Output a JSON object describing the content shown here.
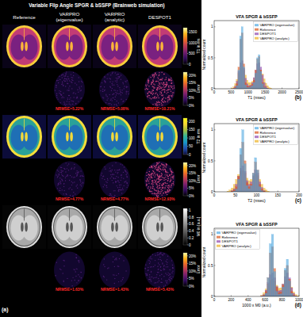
{
  "title": "Variable Flip Angle SPGR & bSSFP (Brainweb simulation)",
  "panel_label": "(a)",
  "columns": [
    [
      "Reference"
    ],
    [
      "VARPRO",
      "(eigenvalue)"
    ],
    [
      "VARPRO",
      "(analytic)"
    ],
    [
      "DESPOT1"
    ]
  ],
  "rows": [
    {
      "colorbar": {
        "label": "T1 in ms",
        "range": [
          0,
          1700
        ],
        "ticks": [
          0,
          500,
          1000,
          1500
        ]
      },
      "error_colorbar": {
        "label": "Error",
        "range": [
          0,
          22
        ],
        "ticks": [
          {
            "value": 0,
            "label": "0%"
          },
          {
            "value": 5,
            "label": "5%"
          },
          {
            "value": 10,
            "label": "10%"
          },
          {
            "value": 15,
            "label": "15%"
          },
          {
            "value": 20,
            "label": "20%"
          }
        ]
      },
      "nrmse": [
        {
          "value": 5.22,
          "label": "NRMSE=5.22%"
        },
        {
          "value": 5.08,
          "label": "NRMSE=5.08%"
        },
        {
          "value": 10.21,
          "label": "NRMSE=10.21%"
        }
      ]
    },
    {
      "colorbar": {
        "label": "T2 in ms",
        "range": [
          0,
          220
        ],
        "ticks": [
          0,
          50,
          100,
          150,
          200
        ]
      },
      "error_colorbar": {
        "label": "Error",
        "range": [
          0,
          22
        ],
        "ticks": [
          {
            "value": 0,
            "label": "0%"
          },
          {
            "value": 5,
            "label": "5%"
          },
          {
            "value": 10,
            "label": "10%"
          },
          {
            "value": 15,
            "label": "15%"
          },
          {
            "value": 20,
            "label": "20%"
          }
        ]
      },
      "nrmse": [
        {
          "value": 4.77,
          "label": "NRMSE=4.77%"
        },
        {
          "value": 4.77,
          "label": "NRMSE=4.77%"
        },
        {
          "value": 12.93,
          "label": "NRMSE=12.93%"
        }
      ]
    },
    {
      "colorbar": {
        "label": "M0 in [a.u.]",
        "range": [
          0,
          1.05
        ],
        "ticks": [
          0,
          0.2,
          0.4,
          0.6,
          0.8,
          1
        ]
      },
      "error_colorbar": {
        "label": "Error",
        "range": [
          0,
          22
        ],
        "ticks": [
          {
            "value": 0,
            "label": "0%"
          },
          {
            "value": 5,
            "label": "5%"
          },
          {
            "value": 10,
            "label": "10%"
          },
          {
            "value": 15,
            "label": "15%"
          },
          {
            "value": 20,
            "label": "20%"
          }
        ]
      },
      "nrmse": [
        {
          "value": 1.63,
          "label": "NRMSE=1.63%"
        },
        {
          "value": 1.43,
          "label": "NRMSE=1.43%"
        },
        {
          "value": 5.43,
          "label": "NRMSE=5.43%"
        }
      ]
    }
  ],
  "chart_data": [
    {
      "type": "histogram",
      "title": "VFA SPGR & bSSFP",
      "panel_label": "(b)",
      "xlabel": "T1 (msec)",
      "ylabel": "Normalized count",
      "xlim": [
        0,
        2500
      ],
      "xticks": [
        0,
        500,
        1000,
        1500,
        2000,
        2500
      ],
      "ylim": [
        0,
        1.1
      ],
      "yticks": [
        0,
        0.5,
        1
      ],
      "grid": false,
      "legend": "upper right",
      "bins": [
        500,
        550,
        600,
        650,
        700,
        750,
        800,
        850,
        900,
        950,
        1000,
        1050,
        1100,
        1150,
        1200,
        1250,
        1300,
        1350,
        1400,
        1450,
        1500,
        1550,
        1600,
        1650,
        1700
      ],
      "series": [
        {
          "name": "VARPRO (analytic)",
          "color": "#edb120",
          "values": [
            0.01,
            0.03,
            0.08,
            0.15,
            0.25,
            0.33,
            0.35,
            0.3,
            0.22,
            0.14,
            0.1,
            0.1,
            0.12,
            0.17,
            0.24,
            0.3,
            0.32,
            0.3,
            0.24,
            0.16,
            0.09,
            0.05,
            0.02,
            0.01
          ]
        },
        {
          "name": "DESPOT1",
          "color": "#8e44ad",
          "values": [
            0,
            0.01,
            0.04,
            0.12,
            0.28,
            0.42,
            0.45,
            0.33,
            0.17,
            0.08,
            0.05,
            0.06,
            0.1,
            0.18,
            0.3,
            0.4,
            0.42,
            0.35,
            0.22,
            0.1,
            0.04,
            0.01,
            0,
            0
          ]
        },
        {
          "name": "Reference",
          "color": "#d9541a",
          "values": [
            0,
            0,
            0.02,
            0.08,
            0.35,
            0.8,
            0.9,
            0.4,
            0.1,
            0.04,
            0.03,
            0.04,
            0.07,
            0.14,
            0.3,
            0.48,
            0.52,
            0.3,
            0.1,
            0.03,
            0.01,
            0,
            0,
            0
          ]
        },
        {
          "name": "VARPRO (eigenvalue)",
          "color": "#4da6e0",
          "values": [
            0,
            0,
            0.01,
            0.05,
            0.3,
            0.85,
            1.0,
            0.35,
            0.06,
            0.02,
            0.02,
            0.03,
            0.05,
            0.1,
            0.25,
            0.5,
            0.55,
            0.28,
            0.08,
            0.02,
            0.01,
            0,
            0,
            0
          ]
        }
      ]
    },
    {
      "type": "histogram",
      "title": "VFA SPGR & bSSFP",
      "panel_label": "(c)",
      "xlabel": "T2 (msec)",
      "ylabel": "Normalized count",
      "xlim": [
        0,
        200
      ],
      "xticks": [
        0,
        50,
        100,
        150,
        200
      ],
      "ylim": [
        0,
        1.1
      ],
      "yticks": [
        0,
        0.5,
        1
      ],
      "grid": false,
      "legend": "upper right",
      "bins": [
        30,
        35,
        40,
        45,
        50,
        55,
        60,
        65,
        70,
        75,
        80,
        85,
        90,
        95,
        100,
        105,
        110,
        115,
        120,
        125,
        130
      ],
      "series": [
        {
          "name": "VARPRO (analytic)",
          "color": "#edb120",
          "values": [
            0.01,
            0.03,
            0.06,
            0.12,
            0.2,
            0.28,
            0.33,
            0.34,
            0.3,
            0.22,
            0.18,
            0.2,
            0.25,
            0.28,
            0.26,
            0.2,
            0.12,
            0.06,
            0.03,
            0.01
          ]
        },
        {
          "name": "DESPOT1",
          "color": "#8e44ad",
          "values": [
            0,
            0,
            0.02,
            0.05,
            0.12,
            0.25,
            0.38,
            0.42,
            0.33,
            0.18,
            0.12,
            0.16,
            0.26,
            0.35,
            0.3,
            0.16,
            0.07,
            0.02,
            0,
            0
          ]
        },
        {
          "name": "Reference",
          "color": "#d9541a",
          "values": [
            0,
            0,
            0.01,
            0.03,
            0.08,
            0.25,
            0.6,
            0.8,
            0.5,
            0.15,
            0.08,
            0.12,
            0.3,
            0.48,
            0.35,
            0.12,
            0.04,
            0.01,
            0,
            0
          ]
        },
        {
          "name": "VARPRO (eigenvalue)",
          "color": "#4da6e0",
          "values": [
            0,
            0,
            0,
            0.01,
            0.04,
            0.2,
            0.7,
            1.0,
            0.45,
            0.1,
            0.05,
            0.1,
            0.3,
            0.55,
            0.35,
            0.08,
            0.02,
            0,
            0,
            0
          ]
        }
      ]
    },
    {
      "type": "histogram",
      "title": "VFA SPGR & bSSFP",
      "panel_label": "(d)",
      "xlabel": "1000 x M0 (a.u.)",
      "ylabel": "Normalized count",
      "xlim": [
        0,
        1000
      ],
      "xticks": [
        0,
        200,
        400,
        600,
        800,
        1000
      ],
      "ylim": [
        0,
        1.1
      ],
      "yticks": [
        0,
        0.5,
        1
      ],
      "grid": false,
      "legend": "upper left",
      "bins": [
        550,
        575,
        600,
        625,
        650,
        675,
        700,
        725,
        750,
        775,
        800,
        825,
        850,
        875,
        900,
        925,
        950,
        975,
        1000
      ],
      "series": [
        {
          "name": "VARPRO (analytic)",
          "color": "#edb120",
          "values": [
            0.02,
            0.06,
            0.12,
            0.2,
            0.26,
            0.28,
            0.25,
            0.18,
            0.13,
            0.14,
            0.2,
            0.26,
            0.28,
            0.24,
            0.15,
            0.07,
            0.03,
            0.01
          ]
        },
        {
          "name": "DESPOT1",
          "color": "#8e44ad",
          "values": [
            0.01,
            0.03,
            0.1,
            0.22,
            0.35,
            0.38,
            0.3,
            0.16,
            0.09,
            0.1,
            0.2,
            0.32,
            0.38,
            0.3,
            0.14,
            0.05,
            0.01,
            0
          ]
        },
        {
          "name": "Reference",
          "color": "#d9541a",
          "values": [
            0,
            0.02,
            0.08,
            0.3,
            0.7,
            0.8,
            0.45,
            0.15,
            0.06,
            0.07,
            0.18,
            0.42,
            0.5,
            0.28,
            0.08,
            0.02,
            0,
            0
          ]
        },
        {
          "name": "VARPRO (eigenvalue)",
          "color": "#4da6e0",
          "values": [
            0,
            0.01,
            0.05,
            0.3,
            0.85,
            1.0,
            0.4,
            0.08,
            0.03,
            0.04,
            0.15,
            0.45,
            0.6,
            0.25,
            0.05,
            0.01,
            0,
            0
          ]
        }
      ]
    }
  ]
}
